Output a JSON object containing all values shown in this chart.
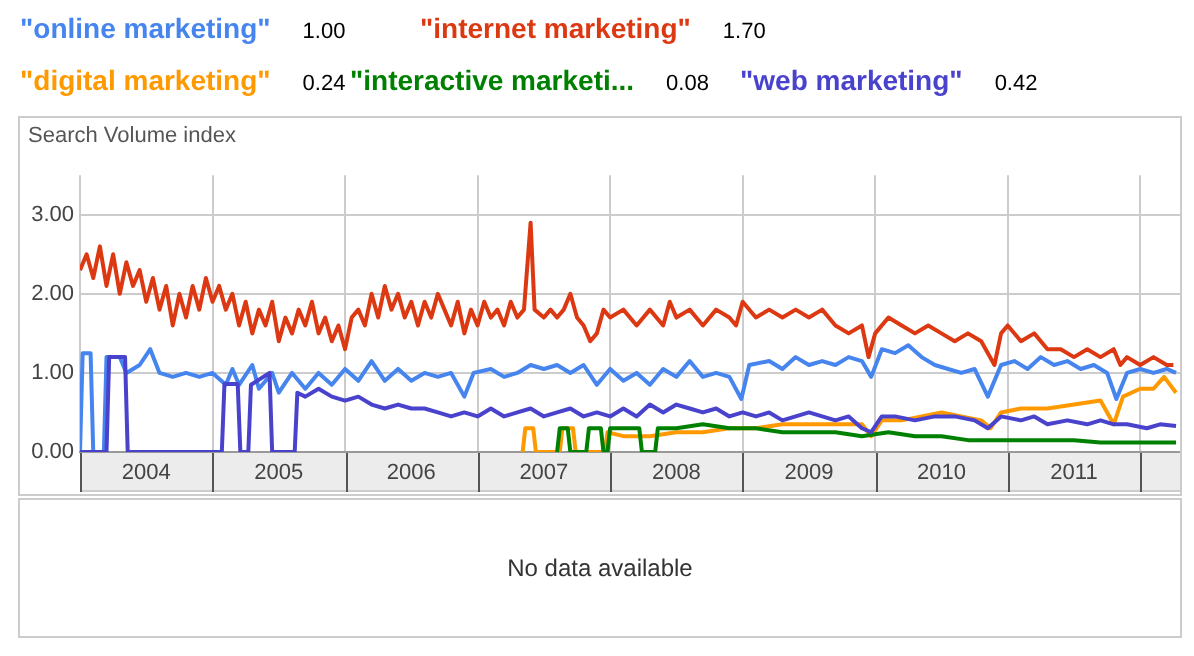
{
  "chart_data": {
    "type": "line",
    "ylabel": "Search Volume index",
    "legend": "top",
    "grid": true,
    "marker": "none",
    "line_style": "solid",
    "annotations": [
      "1.00",
      "1.70",
      "0.24",
      "0.08",
      "0.42",
      "No data available"
    ],
    "xlim": [
      2004,
      2012.3
    ],
    "xticks": [
      {
        "value": 2004,
        "label": null
      },
      {
        "value": 2004.5,
        "label": "2004"
      },
      {
        "value": 2005,
        "label": null
      },
      {
        "value": 2005.5,
        "label": "2005"
      },
      {
        "value": 2006,
        "label": null
      },
      {
        "value": 2006.5,
        "label": "2006"
      },
      {
        "value": 2007,
        "label": null
      },
      {
        "value": 2007.5,
        "label": "2007"
      },
      {
        "value": 2008,
        "label": null
      },
      {
        "value": 2008.5,
        "label": "2008"
      },
      {
        "value": 2009,
        "label": null
      },
      {
        "value": 2009.5,
        "label": "2009"
      },
      {
        "value": 2010,
        "label": null
      },
      {
        "value": 2010.5,
        "label": "2010"
      },
      {
        "value": 2011,
        "label": null
      },
      {
        "value": 2011.5,
        "label": "2011"
      },
      {
        "value": 2012,
        "label": null
      }
    ],
    "ylim": [
      0,
      3.5
    ],
    "yticks": [
      {
        "value": 0,
        "label": "0.00"
      },
      {
        "value": 1,
        "label": "1.00"
      },
      {
        "value": 2,
        "label": "2.00"
      },
      {
        "value": 3,
        "label": "3.00"
      }
    ],
    "series": [
      {
        "name": "\"online marketing\"",
        "color": "#4684ee",
        "x": [
          2004.0,
          2004.02,
          2004.08,
          2004.1,
          2004.18,
          2004.2,
          2004.3,
          2004.35,
          2004.45,
          2004.53,
          2004.6,
          2004.7,
          2004.8,
          2004.9,
          2005.0,
          2005.1,
          2005.15,
          2005.2,
          2005.3,
          2005.35,
          2005.45,
          2005.5,
          2005.6,
          2005.7,
          2005.8,
          2005.9,
          2006.0,
          2006.1,
          2006.2,
          2006.3,
          2006.4,
          2006.5,
          2006.6,
          2006.7,
          2006.8,
          2006.9,
          2006.97,
          2007.1,
          2007.2,
          2007.3,
          2007.4,
          2007.5,
          2007.6,
          2007.7,
          2007.8,
          2007.9,
          2008.0,
          2008.1,
          2008.2,
          2008.3,
          2008.4,
          2008.5,
          2008.6,
          2008.7,
          2008.8,
          2008.9,
          2008.99,
          2009.05,
          2009.2,
          2009.3,
          2009.4,
          2009.5,
          2009.6,
          2009.7,
          2009.8,
          2009.9,
          2009.97,
          2010.05,
          2010.15,
          2010.25,
          2010.35,
          2010.45,
          2010.55,
          2010.65,
          2010.75,
          2010.85,
          2010.95,
          2011.05,
          2011.15,
          2011.25,
          2011.35,
          2011.45,
          2011.55,
          2011.65,
          2011.75,
          2011.82,
          2011.9,
          2012.0,
          2012.1,
          2012.2,
          2012.27
        ],
        "values": [
          0,
          1.25,
          1.25,
          0,
          0,
          1.2,
          1.2,
          1.0,
          1.1,
          1.3,
          1.0,
          0.95,
          1.0,
          0.95,
          1.0,
          0.85,
          1.05,
          0.85,
          1.1,
          0.8,
          1.0,
          0.75,
          1.0,
          0.8,
          1.0,
          0.85,
          1.05,
          0.9,
          1.15,
          0.9,
          1.05,
          0.9,
          1.0,
          0.95,
          1.0,
          0.7,
          1.0,
          1.05,
          0.95,
          1.0,
          1.1,
          1.05,
          1.1,
          1.0,
          1.1,
          0.85,
          1.05,
          0.9,
          1.0,
          0.85,
          1.05,
          0.95,
          1.15,
          0.95,
          1.0,
          0.95,
          0.67,
          1.1,
          1.15,
          1.05,
          1.2,
          1.1,
          1.15,
          1.1,
          1.2,
          1.15,
          0.95,
          1.3,
          1.25,
          1.35,
          1.2,
          1.1,
          1.05,
          1.0,
          1.05,
          0.7,
          1.1,
          1.15,
          1.05,
          1.2,
          1.1,
          1.15,
          1.05,
          1.1,
          1.0,
          0.67,
          1.0,
          1.05,
          1.0,
          1.05,
          1.0
        ]
      },
      {
        "name": "\"internet marketing\"",
        "color": "#dc3912",
        "x": [
          2004.0,
          2004.05,
          2004.1,
          2004.15,
          2004.2,
          2004.25,
          2004.3,
          2004.35,
          2004.4,
          2004.45,
          2004.5,
          2004.55,
          2004.6,
          2004.65,
          2004.7,
          2004.75,
          2004.8,
          2004.85,
          2004.9,
          2004.95,
          2005.0,
          2005.05,
          2005.1,
          2005.15,
          2005.2,
          2005.25,
          2005.3,
          2005.35,
          2005.4,
          2005.45,
          2005.5,
          2005.55,
          2005.6,
          2005.65,
          2005.7,
          2005.75,
          2005.8,
          2005.85,
          2005.9,
          2005.95,
          2006.0,
          2006.05,
          2006.1,
          2006.15,
          2006.2,
          2006.25,
          2006.3,
          2006.35,
          2006.4,
          2006.45,
          2006.5,
          2006.55,
          2006.6,
          2006.65,
          2006.7,
          2006.75,
          2006.8,
          2006.85,
          2006.9,
          2006.95,
          2007.0,
          2007.05,
          2007.1,
          2007.15,
          2007.2,
          2007.25,
          2007.3,
          2007.35,
          2007.4,
          2007.43,
          2007.5,
          2007.55,
          2007.6,
          2007.65,
          2007.7,
          2007.75,
          2007.8,
          2007.85,
          2007.9,
          2007.95,
          2008.0,
          2008.1,
          2008.2,
          2008.3,
          2008.4,
          2008.45,
          2008.5,
          2008.6,
          2008.7,
          2008.8,
          2008.9,
          2008.95,
          2009.0,
          2009.1,
          2009.2,
          2009.3,
          2009.4,
          2009.5,
          2009.6,
          2009.7,
          2009.8,
          2009.9,
          2009.95,
          2010.0,
          2010.1,
          2010.2,
          2010.3,
          2010.4,
          2010.5,
          2010.6,
          2010.7,
          2010.8,
          2010.9,
          2010.95,
          2011.0,
          2011.1,
          2011.2,
          2011.3,
          2011.4,
          2011.5,
          2011.6,
          2011.7,
          2011.8,
          2011.85,
          2011.9,
          2012.0,
          2012.1,
          2012.2,
          2012.25
        ],
        "values": [
          2.3,
          2.5,
          2.2,
          2.6,
          2.1,
          2.5,
          2.0,
          2.4,
          2.1,
          2.3,
          1.9,
          2.2,
          1.8,
          2.1,
          1.6,
          2.0,
          1.7,
          2.1,
          1.8,
          2.2,
          1.9,
          2.1,
          1.8,
          2.0,
          1.6,
          1.9,
          1.5,
          1.8,
          1.6,
          1.9,
          1.4,
          1.7,
          1.5,
          1.8,
          1.6,
          1.9,
          1.5,
          1.7,
          1.4,
          1.6,
          1.3,
          1.7,
          1.8,
          1.6,
          2.0,
          1.7,
          2.1,
          1.8,
          2.0,
          1.7,
          1.9,
          1.6,
          1.9,
          1.7,
          2.0,
          1.8,
          1.6,
          1.9,
          1.5,
          1.8,
          1.6,
          1.9,
          1.7,
          1.8,
          1.6,
          1.9,
          1.7,
          1.8,
          2.9,
          1.8,
          1.7,
          1.8,
          1.7,
          1.8,
          2.0,
          1.7,
          1.6,
          1.4,
          1.5,
          1.8,
          1.7,
          1.8,
          1.6,
          1.8,
          1.6,
          1.9,
          1.7,
          1.8,
          1.6,
          1.8,
          1.7,
          1.6,
          1.9,
          1.7,
          1.8,
          1.7,
          1.8,
          1.7,
          1.8,
          1.6,
          1.5,
          1.6,
          1.2,
          1.5,
          1.7,
          1.6,
          1.5,
          1.6,
          1.5,
          1.4,
          1.5,
          1.4,
          1.1,
          1.5,
          1.6,
          1.4,
          1.5,
          1.3,
          1.3,
          1.2,
          1.3,
          1.2,
          1.3,
          1.1,
          1.2,
          1.1,
          1.2,
          1.1,
          1.1
        ]
      },
      {
        "name": "\"digital marketing\"",
        "color": "#ff9900",
        "x": [
          2007.34,
          2007.36,
          2007.42,
          2007.44,
          2007.62,
          2007.64,
          2007.72,
          2007.74,
          2007.96,
          2007.98,
          2008.1,
          2008.3,
          2008.5,
          2008.7,
          2008.9,
          2009.1,
          2009.3,
          2009.5,
          2009.7,
          2009.9,
          2009.97,
          2010.05,
          2010.2,
          2010.35,
          2010.5,
          2010.65,
          2010.8,
          2010.87,
          2010.95,
          2011.1,
          2011.3,
          2011.5,
          2011.7,
          2011.8,
          2011.87,
          2012.0,
          2012.1,
          2012.18,
          2012.27
        ],
        "values": [
          0,
          0.3,
          0.3,
          0,
          0,
          0.3,
          0.3,
          0,
          0,
          0.25,
          0.2,
          0.2,
          0.25,
          0.25,
          0.3,
          0.3,
          0.35,
          0.35,
          0.35,
          0.35,
          0.2,
          0.4,
          0.4,
          0.45,
          0.5,
          0.45,
          0.4,
          0.3,
          0.5,
          0.55,
          0.55,
          0.6,
          0.65,
          0.35,
          0.7,
          0.8,
          0.8,
          0.95,
          0.75
        ]
      },
      {
        "name": "\"interactive marketi...",
        "color": "#008000",
        "x": [
          2007.6,
          2007.62,
          2007.68,
          2007.7,
          2007.82,
          2007.84,
          2007.93,
          2007.95,
          2007.98,
          2008.0,
          2008.22,
          2008.24,
          2008.34,
          2008.36,
          2008.5,
          2008.7,
          2008.9,
          2009.1,
          2009.3,
          2009.5,
          2009.7,
          2009.9,
          2010.1,
          2010.3,
          2010.5,
          2010.7,
          2010.9,
          2011.1,
          2011.3,
          2011.5,
          2011.7,
          2011.9,
          2012.1,
          2012.27
        ],
        "values": [
          0,
          0.3,
          0.3,
          0,
          0,
          0.3,
          0.3,
          0,
          0,
          0.3,
          0.3,
          0,
          0,
          0.3,
          0.3,
          0.35,
          0.3,
          0.3,
          0.25,
          0.25,
          0.25,
          0.2,
          0.25,
          0.2,
          0.2,
          0.15,
          0.15,
          0.15,
          0.15,
          0.15,
          0.12,
          0.12,
          0.12,
          0.12
        ]
      },
      {
        "name": "\"web marketing\"",
        "color": "#4942cc",
        "x": [
          2004.0,
          2004.2,
          2004.22,
          2004.34,
          2004.36,
          2005.07,
          2005.09,
          2005.19,
          2005.21,
          2005.27,
          2005.29,
          2005.43,
          2005.45,
          2005.62,
          2005.64,
          2005.7,
          2005.8,
          2005.9,
          2006.0,
          2006.1,
          2006.2,
          2006.3,
          2006.4,
          2006.5,
          2006.6,
          2006.7,
          2006.8,
          2006.9,
          2007.0,
          2007.1,
          2007.2,
          2007.3,
          2007.4,
          2007.5,
          2007.6,
          2007.7,
          2007.8,
          2007.9,
          2008.0,
          2008.1,
          2008.2,
          2008.3,
          2008.4,
          2008.5,
          2008.6,
          2008.7,
          2008.8,
          2008.9,
          2009.0,
          2009.1,
          2009.2,
          2009.3,
          2009.4,
          2009.5,
          2009.6,
          2009.7,
          2009.8,
          2009.9,
          2009.97,
          2010.05,
          2010.15,
          2010.3,
          2010.45,
          2010.6,
          2010.75,
          2010.85,
          2010.95,
          2011.1,
          2011.2,
          2011.3,
          2011.45,
          2011.6,
          2011.7,
          2011.8,
          2011.9,
          2012.05,
          2012.15,
          2012.27
        ],
        "values": [
          0,
          0,
          1.2,
          1.2,
          0,
          0,
          0.86,
          0.86,
          0,
          0,
          0.85,
          1.0,
          0,
          0,
          0.75,
          0.7,
          0.8,
          0.7,
          0.65,
          0.7,
          0.6,
          0.55,
          0.6,
          0.55,
          0.55,
          0.5,
          0.45,
          0.5,
          0.45,
          0.55,
          0.45,
          0.5,
          0.55,
          0.45,
          0.5,
          0.55,
          0.45,
          0.5,
          0.45,
          0.55,
          0.45,
          0.6,
          0.5,
          0.6,
          0.55,
          0.5,
          0.55,
          0.45,
          0.5,
          0.45,
          0.5,
          0.4,
          0.45,
          0.5,
          0.45,
          0.4,
          0.45,
          0.3,
          0.25,
          0.45,
          0.45,
          0.4,
          0.45,
          0.45,
          0.4,
          0.3,
          0.45,
          0.4,
          0.45,
          0.35,
          0.4,
          0.35,
          0.4,
          0.35,
          0.35,
          0.3,
          0.35,
          0.33
        ]
      }
    ]
  }
}
